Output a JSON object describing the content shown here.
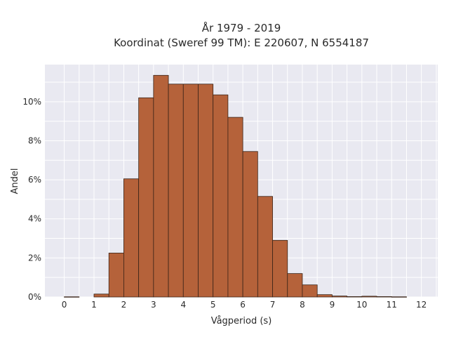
{
  "chart_data": {
    "type": "bar",
    "title_line1": "År 1979 - 2019",
    "title_line2": "Koordinat (Sweref 99 TM): E 220607, N 6554187",
    "xlabel": "Vågperiod (s)",
    "ylabel": "Andel",
    "xlim": [
      -0.65,
      12.55
    ],
    "ylim": [
      0,
      11.9
    ],
    "x_ticks": [
      0,
      1,
      2,
      3,
      4,
      5,
      6,
      7,
      8,
      9,
      10,
      11,
      12
    ],
    "y_ticks": [
      0,
      2,
      4,
      6,
      8,
      10
    ],
    "y_tick_labels": [
      "0%",
      "2%",
      "4%",
      "6%",
      "8%",
      "10%"
    ],
    "bin_width": 0.5,
    "bin_starts": [
      0,
      0.5,
      1,
      1.5,
      2,
      2.5,
      3,
      3.5,
      4,
      4.5,
      5,
      5.5,
      6,
      6.5,
      7,
      7.5,
      8,
      8.5,
      9,
      9.5,
      10,
      10.5,
      11,
      11.5
    ],
    "values": [
      0.01,
      0,
      0.15,
      2.25,
      6.05,
      10.2,
      11.35,
      10.9,
      10.9,
      10.9,
      10.35,
      9.2,
      7.45,
      5.15,
      2.9,
      1.2,
      0.62,
      0.12,
      0.05,
      0.02,
      0.04,
      0.02,
      0.01,
      0
    ],
    "bar_color": "#b5623a",
    "bar_edge_color": "#3a2418",
    "plot_bg": "#e9e9f1",
    "grid": true,
    "grid_color": "#ffffff"
  }
}
